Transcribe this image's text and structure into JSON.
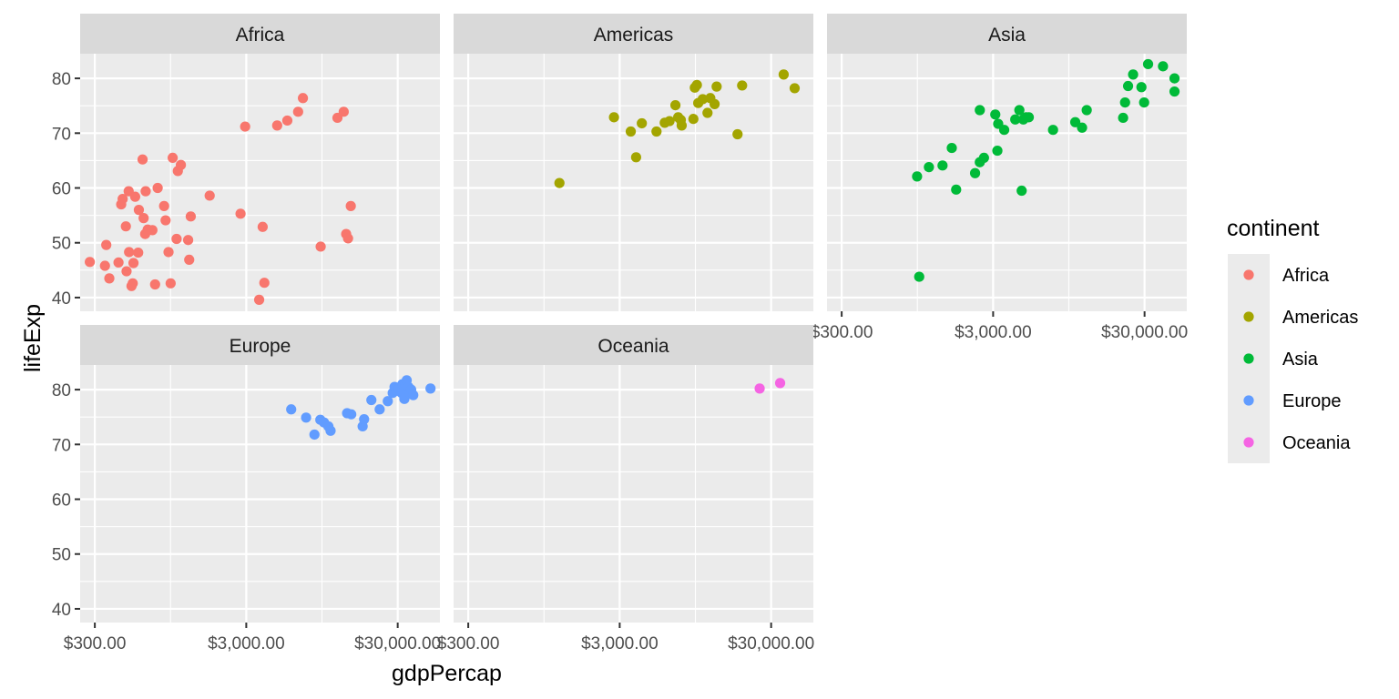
{
  "chart_data": {
    "type": "scatter",
    "facet_by": "continent",
    "xlabel": "gdpPercap",
    "ylabel": "lifeExp",
    "x_scale": "log10",
    "xlim": [
      240,
      57000
    ],
    "ylim": [
      37.5,
      84.5
    ],
    "x_ticks": [
      300,
      3000,
      30000
    ],
    "x_tick_labels": [
      "$300.00",
      "$3,000.00",
      "$30,000.00"
    ],
    "y_ticks": [
      40,
      50,
      60,
      70,
      80
    ],
    "y_tick_labels": [
      "40",
      "50",
      "60",
      "70",
      "80"
    ],
    "grid": true,
    "legend_title": "continent",
    "legend_position": "right",
    "series": [
      {
        "name": "Africa",
        "color": "#F8766D",
        "points": [
          [
            278,
            46.5
          ],
          [
            350,
            45.8
          ],
          [
            357,
            49.6
          ],
          [
            374,
            43.5
          ],
          [
            430,
            46.4
          ],
          [
            448,
            57.0
          ],
          [
            458,
            58.0
          ],
          [
            481,
            53.0
          ],
          [
            486,
            44.8
          ],
          [
            502,
            59.4
          ],
          [
            505,
            48.3
          ],
          [
            524,
            42.1
          ],
          [
            534,
            42.6
          ],
          [
            540,
            46.3
          ],
          [
            554,
            58.4
          ],
          [
            580,
            48.2
          ],
          [
            586,
            56.0
          ],
          [
            620,
            65.2
          ],
          [
            630,
            54.5
          ],
          [
            645,
            51.6
          ],
          [
            650,
            59.4
          ],
          [
            670,
            52.4
          ],
          [
            720,
            52.3
          ],
          [
            750,
            42.4
          ],
          [
            780,
            60.0
          ],
          [
            860,
            56.7
          ],
          [
            880,
            54.1
          ],
          [
            920,
            48.3
          ],
          [
            950,
            42.6
          ],
          [
            980,
            65.5
          ],
          [
            1040,
            50.7
          ],
          [
            1060,
            63.1
          ],
          [
            1110,
            64.2
          ],
          [
            1240,
            50.5
          ],
          [
            1260,
            46.9
          ],
          [
            1290,
            54.8
          ],
          [
            1720,
            58.6
          ],
          [
            2750,
            55.3
          ],
          [
            2950,
            71.2
          ],
          [
            3650,
            39.6
          ],
          [
            3850,
            52.9
          ],
          [
            3950,
            42.7
          ],
          [
            4800,
            71.4
          ],
          [
            5600,
            72.3
          ],
          [
            6600,
            73.9
          ],
          [
            7100,
            76.4
          ],
          [
            9300,
            49.3
          ],
          [
            12000,
            72.8
          ],
          [
            13200,
            73.9
          ],
          [
            13700,
            51.6
          ],
          [
            14100,
            50.8
          ],
          [
            14700,
            56.7
          ]
        ]
      },
      {
        "name": "Americas",
        "color": "#A3A500",
        "points": [
          [
            1200,
            60.9
          ],
          [
            2750,
            72.9
          ],
          [
            3550,
            70.3
          ],
          [
            3850,
            65.6
          ],
          [
            4200,
            71.8
          ],
          [
            5250,
            70.3
          ],
          [
            5950,
            71.9
          ],
          [
            6400,
            72.2
          ],
          [
            7000,
            75.1
          ],
          [
            7300,
            72.9
          ],
          [
            7600,
            72.4
          ],
          [
            7700,
            71.4
          ],
          [
            9200,
            72.6
          ],
          [
            9400,
            78.3
          ],
          [
            9700,
            78.8
          ],
          [
            9900,
            75.5
          ],
          [
            10600,
            76.2
          ],
          [
            11400,
            73.7
          ],
          [
            11900,
            76.4
          ],
          [
            12700,
            75.3
          ],
          [
            13100,
            78.5
          ],
          [
            18000,
            69.8
          ],
          [
            19300,
            78.7
          ],
          [
            36300,
            80.7
          ],
          [
            42900,
            78.2
          ]
        ]
      },
      {
        "name": "Asia",
        "color": "#00BA38",
        "points": [
          [
            944,
            62.1
          ],
          [
            975,
            43.8
          ],
          [
            1130,
            63.8
          ],
          [
            1390,
            64.1
          ],
          [
            1600,
            67.3
          ],
          [
            1710,
            59.7
          ],
          [
            2280,
            62.7
          ],
          [
            2450,
            74.2
          ],
          [
            2450,
            64.7
          ],
          [
            2610,
            65.5
          ],
          [
            3100,
            73.4
          ],
          [
            3200,
            66.8
          ],
          [
            3240,
            71.7
          ],
          [
            3550,
            70.6
          ],
          [
            4200,
            72.5
          ],
          [
            4470,
            74.2
          ],
          [
            4630,
            59.5
          ],
          [
            4750,
            72.5
          ],
          [
            4960,
            72.9
          ],
          [
            5160,
            72.9
          ],
          [
            7460,
            70.6
          ],
          [
            10460,
            72.0
          ],
          [
            11600,
            71.0
          ],
          [
            12450,
            74.2
          ],
          [
            21650,
            72.8
          ],
          [
            22300,
            75.6
          ],
          [
            23350,
            78.6
          ],
          [
            25200,
            80.7
          ],
          [
            28600,
            78.4
          ],
          [
            29800,
            75.6
          ],
          [
            31650,
            82.6
          ],
          [
            39700,
            82.2
          ],
          [
            47300,
            80.0
          ],
          [
            47300,
            77.6
          ]
        ]
      },
      {
        "name": "Europe",
        "color": "#619CFF",
        "points": [
          [
            5940,
            76.4
          ],
          [
            7450,
            74.9
          ],
          [
            8460,
            71.8
          ],
          [
            9250,
            74.5
          ],
          [
            9790,
            74.0
          ],
          [
            10460,
            73.3
          ],
          [
            10810,
            72.5
          ],
          [
            13900,
            75.7
          ],
          [
            14800,
            75.5
          ],
          [
            17600,
            73.3
          ],
          [
            18000,
            74.6
          ],
          [
            20100,
            78.1
          ],
          [
            22800,
            76.4
          ],
          [
            25800,
            77.9
          ],
          [
            27800,
            79.4
          ],
          [
            28600,
            80.5
          ],
          [
            29800,
            79.8
          ],
          [
            30500,
            80.2
          ],
          [
            31800,
            79.4
          ],
          [
            32200,
            81.0
          ],
          [
            33200,
            78.3
          ],
          [
            33700,
            80.9
          ],
          [
            34400,
            81.7
          ],
          [
            35300,
            80.5
          ],
          [
            36100,
            79.3
          ],
          [
            36800,
            80.0
          ],
          [
            38000,
            79.0
          ],
          [
            49400,
            80.2
          ]
        ]
      },
      {
        "name": "Oceania",
        "color": "#F564E3",
        "points": [
          [
            25200,
            80.2
          ],
          [
            34400,
            81.2
          ]
        ]
      }
    ]
  }
}
